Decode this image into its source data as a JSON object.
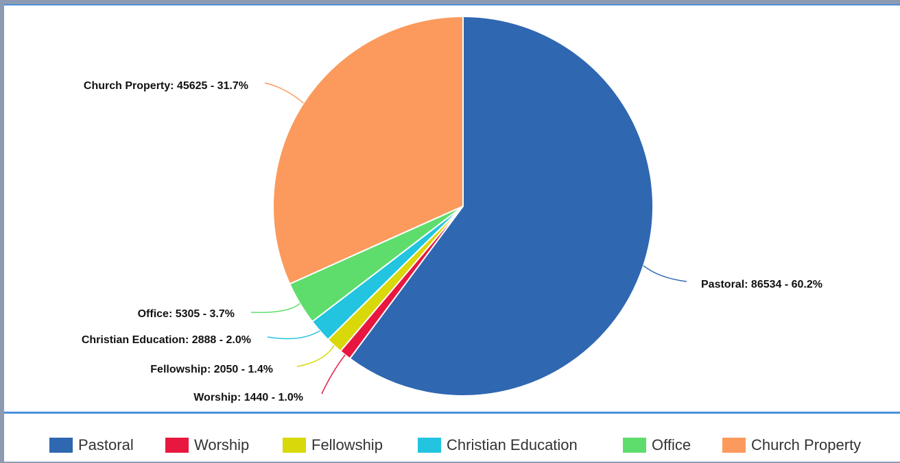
{
  "chart_data": {
    "type": "pie",
    "slices": [
      {
        "name": "Pastoral",
        "value": 86534,
        "percent": "60.2%",
        "color": "#2f67b1",
        "label": "Pastoral: 86534 - 60.2%"
      },
      {
        "name": "Worship",
        "value": 1440,
        "percent": "1.0%",
        "color": "#e8173f",
        "label": "Worship: 1440 - 1.0%"
      },
      {
        "name": "Fellowship",
        "value": 2050,
        "percent": "1.4%",
        "color": "#d8d80a",
        "label": "Fellowship: 2050 - 1.4%"
      },
      {
        "name": "Christian Education",
        "value": 2888,
        "percent": "2.0%",
        "color": "#22c4e0",
        "label": "Christian Education: 2888 - 2.0%"
      },
      {
        "name": "Office",
        "value": 5305,
        "percent": "3.7%",
        "color": "#5fdd6c",
        "label": "Office: 5305 - 3.7%"
      },
      {
        "name": "Church Property",
        "value": 45625,
        "percent": "31.7%",
        "color": "#fb9a5c",
        "label": "Church Property: 45625 - 31.7%"
      }
    ],
    "start_angle": "12 o'clock",
    "direction": "clockwise",
    "legend_position": "bottom"
  },
  "legend": {
    "items": [
      {
        "label": "Pastoral",
        "color": "#2f67b1"
      },
      {
        "label": "Worship",
        "color": "#e8173f"
      },
      {
        "label": "Fellowship",
        "color": "#d8d80a"
      },
      {
        "label": "Christian Education",
        "color": "#22c4e0"
      },
      {
        "label": "Office",
        "color": "#5fdd6c"
      },
      {
        "label": "Church Property",
        "color": "#fb9a5c"
      }
    ]
  }
}
